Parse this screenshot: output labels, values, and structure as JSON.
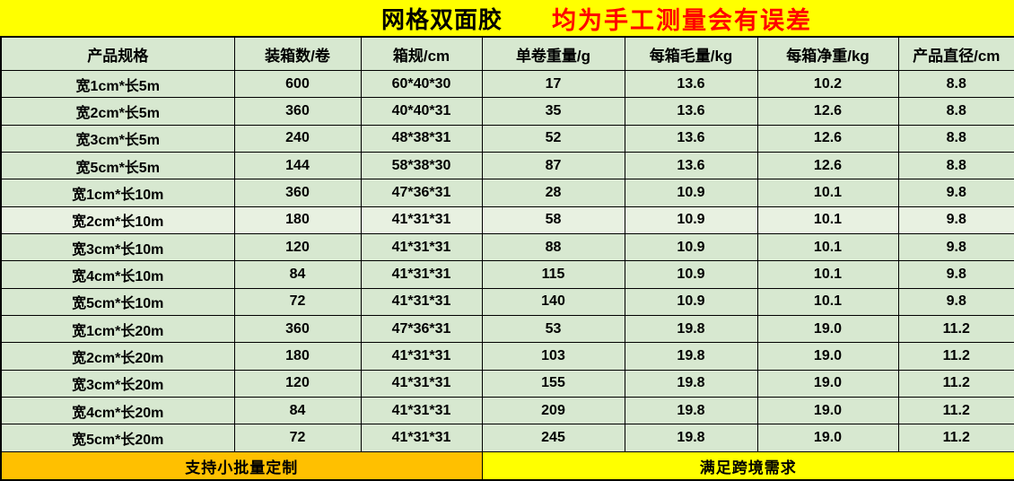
{
  "title": {
    "main": "网格双面胶",
    "warning": "均为手工测量会有误差"
  },
  "table": {
    "headers": [
      "产品规格",
      "装箱数/卷",
      "箱规/cm",
      "单卷重量/g",
      "每箱毛量/kg",
      "每箱净重/kg",
      "产品直径/cm"
    ],
    "rows": [
      [
        "宽1cm*长5m",
        "600",
        "60*40*30",
        "17",
        "13.6",
        "10.2",
        "8.8"
      ],
      [
        "宽2cm*长5m",
        "360",
        "40*40*31",
        "35",
        "13.6",
        "12.6",
        "8.8"
      ],
      [
        "宽3cm*长5m",
        "240",
        "48*38*31",
        "52",
        "13.6",
        "12.6",
        "8.8"
      ],
      [
        "宽5cm*长5m",
        "144",
        "58*38*30",
        "87",
        "13.6",
        "12.6",
        "8.8"
      ],
      [
        "宽1cm*长10m",
        "360",
        "47*36*31",
        "28",
        "10.9",
        "10.1",
        "9.8"
      ],
      [
        "宽2cm*长10m",
        "180",
        "41*31*31",
        "58",
        "10.9",
        "10.1",
        "9.8"
      ],
      [
        "宽3cm*长10m",
        "120",
        "41*31*31",
        "88",
        "10.9",
        "10.1",
        "9.8"
      ],
      [
        "宽4cm*长10m",
        "84",
        "41*31*31",
        "115",
        "10.9",
        "10.1",
        "9.8"
      ],
      [
        "宽5cm*长10m",
        "72",
        "41*31*31",
        "140",
        "10.9",
        "10.1",
        "9.8"
      ],
      [
        "宽1cm*长20m",
        "360",
        "47*36*31",
        "53",
        "19.8",
        "19.0",
        "11.2"
      ],
      [
        "宽2cm*长20m",
        "180",
        "41*31*31",
        "103",
        "19.8",
        "19.0",
        "11.2"
      ],
      [
        "宽3cm*长20m",
        "120",
        "41*31*31",
        "155",
        "19.8",
        "19.0",
        "11.2"
      ],
      [
        "宽4cm*长20m",
        "84",
        "41*31*31",
        "209",
        "19.8",
        "19.0",
        "11.2"
      ],
      [
        "宽5cm*长20m",
        "72",
        "41*31*31",
        "245",
        "19.8",
        "19.0",
        "11.2"
      ]
    ],
    "highlighted_row_index": 5
  },
  "footer": {
    "left": "支持小批量定制",
    "right": "满足跨境需求"
  },
  "colors": {
    "band_yellow": "#FFFF00",
    "cell_green": "#D7E8D0",
    "cell_green_light": "#E8F1E1",
    "footer_orange": "#FFC000",
    "warning_red": "#FF0000",
    "border_black": "#000000"
  }
}
